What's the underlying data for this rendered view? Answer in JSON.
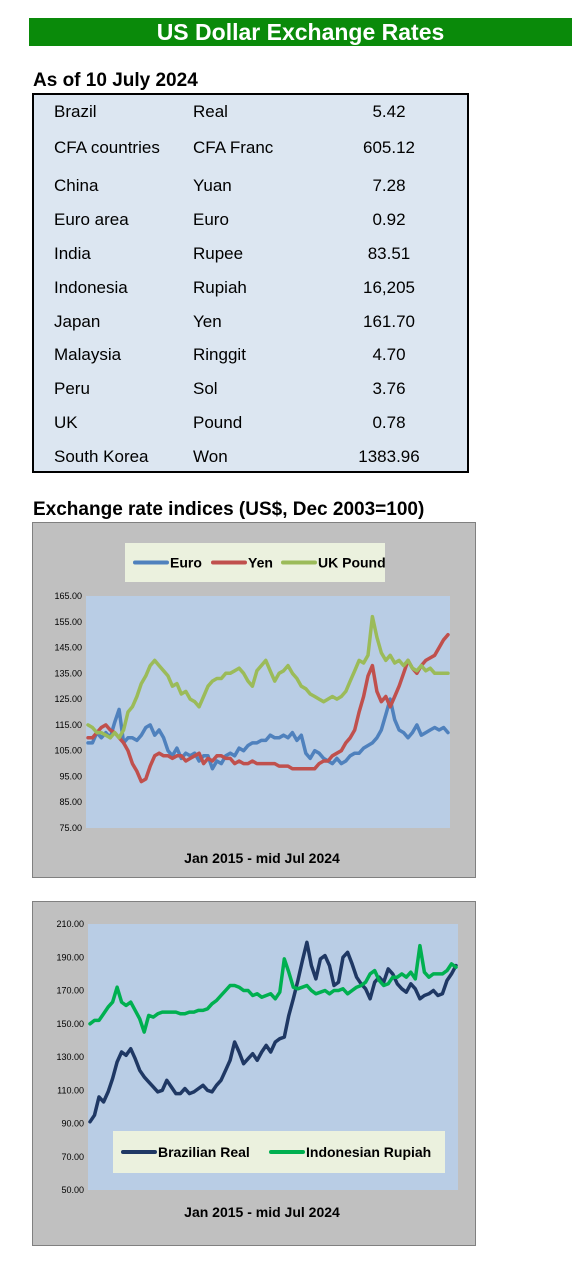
{
  "header": {
    "title": "US Dollar Exchange Rates"
  },
  "rates": {
    "as_of": "As of 10 July 2024",
    "rows": [
      {
        "country": "Brazil",
        "currency": "Real",
        "rate": "5.42"
      },
      {
        "country": "CFA countries",
        "currency": "CFA Franc",
        "rate": "605.12"
      },
      {
        "country": "China",
        "currency": "Yuan",
        "rate": "7.28"
      },
      {
        "country": "Euro area",
        "currency": "Euro",
        "rate": "0.92"
      },
      {
        "country": "India",
        "currency": "Rupee",
        "rate": "83.51"
      },
      {
        "country": "Indonesia",
        "currency": "Rupiah",
        "rate": "16,205"
      },
      {
        "country": "Japan",
        "currency": "Yen",
        "rate": "161.70"
      },
      {
        "country": "Malaysia",
        "currency": "Ringgit",
        "rate": "4.70"
      },
      {
        "country": "Peru",
        "currency": "Sol",
        "rate": "3.76"
      },
      {
        "country": "UK",
        "currency": "Pound",
        "rate": "0.78"
      },
      {
        "country": "South Korea",
        "currency": "Won",
        "rate": "1383.96"
      }
    ]
  },
  "indices": {
    "heading": "Exchange rate indices (US$, Dec 2003=100)"
  },
  "chart_data": [
    {
      "type": "line",
      "xlabel": "Jan 2015 - mid Jul 2024",
      "ylim": [
        75,
        165
      ],
      "yticks": [
        "165.00",
        "155.00",
        "145.00",
        "135.00",
        "125.00",
        "115.00",
        "105.00",
        "95.00",
        "85.00",
        "75.00"
      ],
      "grid": false,
      "legend": "top",
      "series": [
        {
          "name": "Euro",
          "color": "#4f81bd",
          "values": [
            108,
            108,
            112,
            110,
            112,
            110,
            116,
            121,
            108,
            110,
            110,
            109,
            111,
            114,
            115,
            111,
            113,
            110,
            105,
            103,
            106,
            102,
            104,
            103,
            104,
            101,
            103,
            103,
            98,
            101,
            100,
            103,
            104,
            103,
            106,
            105,
            107,
            108,
            108,
            109,
            109,
            111,
            110,
            110,
            111,
            110,
            112,
            109,
            111,
            104,
            102,
            105,
            104,
            102,
            101,
            100,
            102,
            100,
            101,
            103,
            104,
            104,
            106,
            107,
            108,
            110,
            113,
            119,
            125,
            117,
            113,
            112,
            110,
            112,
            115,
            111,
            112,
            113,
            114,
            113,
            114,
            112
          ]
        },
        {
          "name": "Yen",
          "color": "#c0504d",
          "values": [
            110,
            110,
            112,
            114,
            115,
            113,
            112,
            110,
            108,
            105,
            100,
            97,
            93,
            94,
            99,
            103,
            104,
            103,
            103,
            102,
            103,
            103,
            101,
            102,
            103,
            104,
            100,
            102,
            101,
            103,
            103,
            102,
            102,
            100,
            101,
            100,
            100,
            101,
            100,
            100,
            100,
            100,
            100,
            99,
            99,
            99,
            98,
            98,
            98,
            98,
            98,
            98,
            100,
            101,
            101,
            103,
            104,
            105,
            108,
            110,
            113,
            120,
            126,
            134,
            138,
            128,
            124,
            126,
            122,
            126,
            130,
            135,
            140,
            137,
            135,
            138,
            140,
            141,
            142,
            145,
            148,
            150
          ]
        },
        {
          "name": "UK Pound",
          "color": "#9bbb59",
          "values": [
            115,
            114,
            112,
            112,
            111,
            110,
            112,
            110,
            113,
            120,
            122,
            126,
            131,
            134,
            138,
            140,
            138,
            136,
            134,
            130,
            131,
            127,
            128,
            125,
            124,
            122,
            126,
            130,
            132,
            133,
            133,
            135,
            135,
            136,
            137,
            135,
            132,
            130,
            136,
            138,
            140,
            136,
            132,
            135,
            136,
            138,
            135,
            133,
            130,
            129,
            127,
            126,
            125,
            124,
            125,
            126,
            125,
            126,
            128,
            132,
            136,
            140,
            139,
            142,
            157,
            149,
            143,
            140,
            142,
            139,
            140,
            138,
            140,
            137,
            136,
            138,
            136,
            137,
            135,
            135,
            135,
            135
          ]
        }
      ]
    },
    {
      "type": "line",
      "xlabel": "Jan 2015 - mid Jul 2024",
      "ylim": [
        50,
        210
      ],
      "yticks": [
        "210.00",
        "190.00",
        "170.00",
        "150.00",
        "130.00",
        "110.00",
        "90.00",
        "70.00",
        "50.00"
      ],
      "grid": false,
      "legend": "bottom",
      "series": [
        {
          "name": "Brazilian Real",
          "color": "#1f3864",
          "values": [
            91,
            95,
            106,
            103,
            109,
            117,
            127,
            133,
            131,
            135,
            129,
            122,
            118,
            115,
            112,
            109,
            110,
            116,
            112,
            108,
            108,
            111,
            108,
            109,
            111,
            113,
            110,
            109,
            113,
            116,
            122,
            128,
            139,
            133,
            126,
            129,
            132,
            128,
            133,
            137,
            133,
            139,
            141,
            142,
            155,
            165,
            176,
            188,
            199,
            185,
            177,
            189,
            191,
            185,
            173,
            175,
            190,
            193,
            186,
            178,
            174,
            171,
            165,
            175,
            178,
            175,
            183,
            180,
            174,
            171,
            169,
            174,
            171,
            165,
            167,
            168,
            170,
            167,
            168,
            176,
            180,
            185
          ]
        },
        {
          "name": "Indonesian Rupiah",
          "color": "#00b050",
          "values": [
            150,
            152,
            152,
            156,
            160,
            163,
            172,
            163,
            161,
            163,
            158,
            153,
            145,
            155,
            154,
            156,
            157,
            157,
            157,
            157,
            156,
            156,
            157,
            157,
            158,
            158,
            159,
            162,
            164,
            167,
            170,
            173,
            173,
            172,
            170,
            170,
            167,
            168,
            166,
            167,
            168,
            165,
            169,
            189,
            181,
            172,
            171,
            172,
            173,
            170,
            168,
            169,
            170,
            168,
            170,
            170,
            171,
            168,
            170,
            172,
            173,
            175,
            180,
            182,
            176,
            173,
            174,
            178,
            178,
            180,
            178,
            181,
            177,
            197,
            181,
            178,
            180,
            180,
            180,
            182,
            186,
            184
          ]
        }
      ]
    }
  ]
}
